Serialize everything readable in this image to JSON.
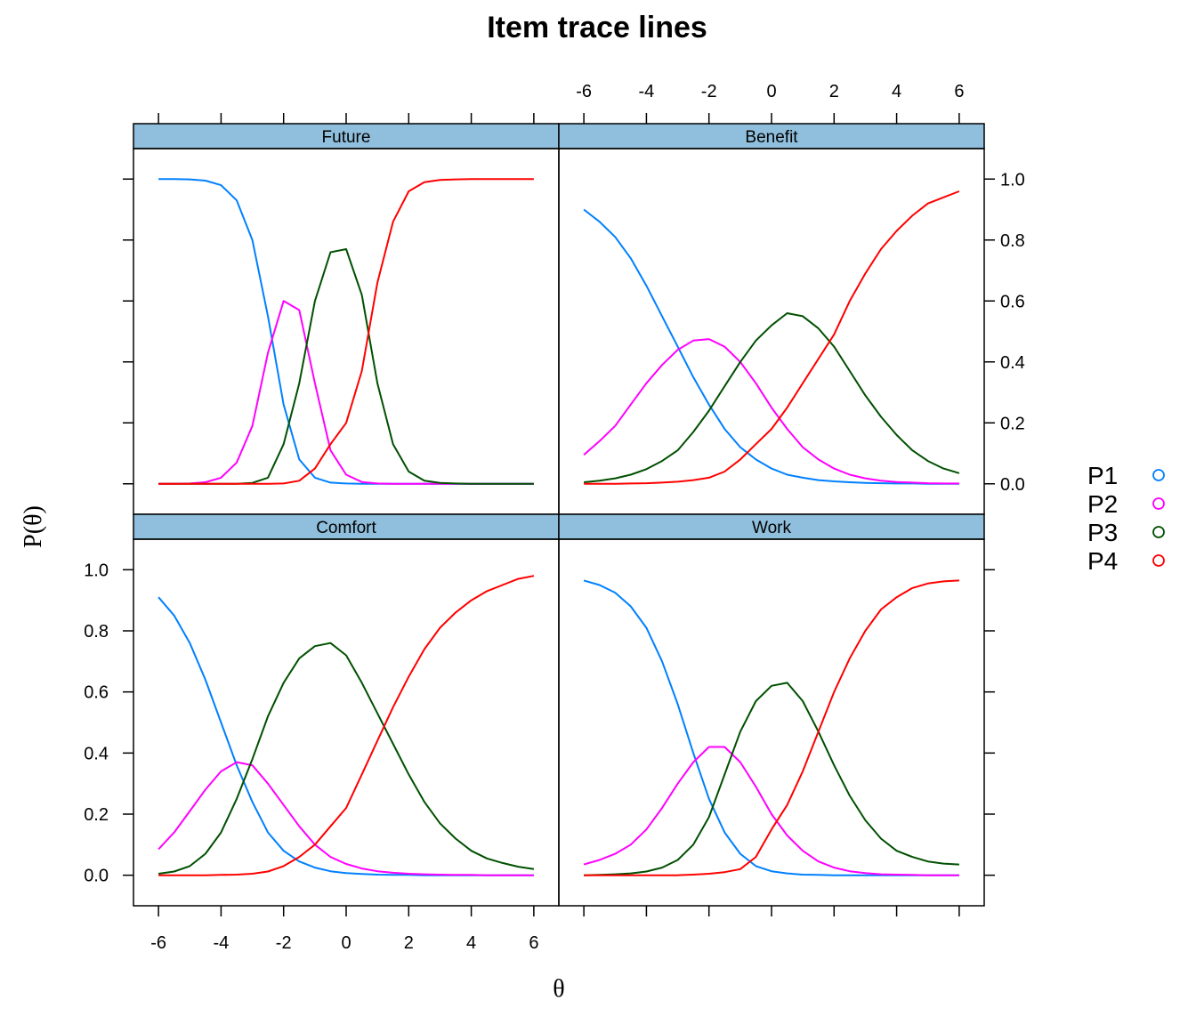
{
  "chart_data": {
    "type": "line",
    "title": "Item trace lines",
    "xlabel": "θ",
    "ylabel": "P(θ)",
    "xlim": [
      -6.8,
      6.8
    ],
    "ylim": [
      -0.1,
      1.1
    ],
    "x_ticks": [
      "-6",
      "-4",
      "-2",
      "0",
      "2",
      "4",
      "6"
    ],
    "y_ticks": [
      "0.0",
      "0.2",
      "0.4",
      "0.6",
      "0.8",
      "1.0"
    ],
    "legend_position": "right",
    "series_legend": [
      {
        "name": "P1",
        "color": "#0080ff"
      },
      {
        "name": "P2",
        "color": "#ff00ff"
      },
      {
        "name": "P3",
        "color": "#005000"
      },
      {
        "name": "P4",
        "color": "#ff0000"
      }
    ],
    "panels": [
      {
        "name": "Future",
        "x": [
          -6,
          -5.5,
          -5,
          -4.5,
          -4,
          -3.5,
          -3,
          -2.5,
          -2,
          -1.5,
          -1,
          -0.5,
          0,
          0.5,
          1,
          1.5,
          2,
          2.5,
          3,
          3.5,
          4,
          4.5,
          5,
          5.5,
          6
        ],
        "series": [
          {
            "name": "P1",
            "values": [
              1.0,
              1.0,
              0.999,
              0.995,
              0.98,
              0.93,
              0.8,
              0.55,
              0.26,
              0.08,
              0.02,
              0.004,
              0.001,
              0,
              0,
              0,
              0,
              0,
              0,
              0,
              0,
              0,
              0,
              0,
              0
            ]
          },
          {
            "name": "P2",
            "values": [
              0,
              0,
              0.001,
              0.005,
              0.02,
              0.07,
              0.19,
              0.43,
              0.6,
              0.57,
              0.33,
              0.11,
              0.03,
              0.006,
              0.001,
              0,
              0,
              0,
              0,
              0,
              0,
              0,
              0,
              0,
              0
            ]
          },
          {
            "name": "P3",
            "values": [
              0,
              0,
              0,
              0,
              0,
              0,
              0.003,
              0.02,
              0.13,
              0.33,
              0.6,
              0.76,
              0.77,
              0.62,
              0.33,
              0.13,
              0.04,
              0.01,
              0.003,
              0.001,
              0,
              0,
              0,
              0,
              0
            ]
          },
          {
            "name": "P4",
            "values": [
              0,
              0,
              0,
              0,
              0,
              0,
              0,
              0,
              0.001,
              0.01,
              0.05,
              0.13,
              0.2,
              0.37,
              0.66,
              0.86,
              0.96,
              0.99,
              0.997,
              0.999,
              1.0,
              1.0,
              1.0,
              1.0,
              1.0
            ]
          }
        ]
      },
      {
        "name": "Benefit",
        "x": [
          -6,
          -5.5,
          -5,
          -4.5,
          -4,
          -3.5,
          -3,
          -2.5,
          -2,
          -1.5,
          -1,
          -0.5,
          0,
          0.5,
          1,
          1.5,
          2,
          2.5,
          3,
          3.5,
          4,
          4.5,
          5,
          5.5,
          6
        ],
        "series": [
          {
            "name": "P1",
            "values": [
              0.9,
              0.86,
              0.81,
              0.74,
              0.65,
              0.55,
              0.45,
              0.35,
              0.26,
              0.18,
              0.12,
              0.08,
              0.05,
              0.03,
              0.02,
              0.012,
              0.008,
              0.005,
              0.003,
              0.002,
              0.001,
              0.001,
              0,
              0,
              0
            ]
          },
          {
            "name": "P2",
            "values": [
              0.095,
              0.14,
              0.19,
              0.26,
              0.33,
              0.39,
              0.44,
              0.47,
              0.475,
              0.45,
              0.4,
              0.33,
              0.25,
              0.18,
              0.12,
              0.08,
              0.05,
              0.03,
              0.018,
              0.01,
              0.006,
              0.004,
              0.002,
              0.001,
              0.001
            ]
          },
          {
            "name": "P3",
            "values": [
              0.005,
              0.01,
              0.018,
              0.03,
              0.048,
              0.075,
              0.11,
              0.17,
              0.24,
              0.32,
              0.4,
              0.47,
              0.52,
              0.56,
              0.55,
              0.51,
              0.45,
              0.37,
              0.29,
              0.22,
              0.16,
              0.11,
              0.075,
              0.05,
              0.035
            ]
          },
          {
            "name": "P4",
            "values": [
              0,
              0,
              0,
              0.001,
              0.002,
              0.004,
              0.007,
              0.012,
              0.02,
              0.04,
              0.08,
              0.13,
              0.18,
              0.25,
              0.33,
              0.41,
              0.49,
              0.6,
              0.69,
              0.77,
              0.83,
              0.88,
              0.92,
              0.94,
              0.96
            ]
          }
        ]
      },
      {
        "name": "Comfort",
        "x": [
          -6,
          -5.5,
          -5,
          -4.5,
          -4,
          -3.5,
          -3,
          -2.5,
          -2,
          -1.5,
          -1,
          -0.5,
          0,
          0.5,
          1,
          1.5,
          2,
          2.5,
          3,
          3.5,
          4,
          4.5,
          5,
          5.5,
          6
        ],
        "series": [
          {
            "name": "P1",
            "values": [
              0.91,
              0.85,
              0.76,
              0.64,
              0.5,
              0.36,
              0.24,
              0.14,
              0.08,
              0.045,
              0.025,
              0.013,
              0.007,
              0.004,
              0.002,
              0.001,
              0.001,
              0,
              0,
              0,
              0,
              0,
              0,
              0,
              0
            ]
          },
          {
            "name": "P2",
            "values": [
              0.085,
              0.14,
              0.21,
              0.28,
              0.34,
              0.37,
              0.36,
              0.3,
              0.23,
              0.16,
              0.1,
              0.06,
              0.037,
              0.022,
              0.013,
              0.008,
              0.005,
              0.003,
              0.002,
              0.001,
              0.001,
              0,
              0,
              0,
              0
            ]
          },
          {
            "name": "P3",
            "values": [
              0.005,
              0.012,
              0.03,
              0.07,
              0.14,
              0.25,
              0.38,
              0.52,
              0.63,
              0.71,
              0.75,
              0.76,
              0.72,
              0.63,
              0.53,
              0.43,
              0.33,
              0.24,
              0.17,
              0.12,
              0.08,
              0.055,
              0.04,
              0.028,
              0.02
            ]
          },
          {
            "name": "P4",
            "values": [
              0,
              0,
              0,
              0,
              0.001,
              0.002,
              0.005,
              0.012,
              0.03,
              0.06,
              0.1,
              0.16,
              0.22,
              0.33,
              0.44,
              0.55,
              0.65,
              0.74,
              0.81,
              0.86,
              0.9,
              0.93,
              0.95,
              0.97,
              0.98
            ]
          }
        ]
      },
      {
        "name": "Work",
        "x": [
          -6,
          -5.5,
          -5,
          -4.5,
          -4,
          -3.5,
          -3,
          -2.5,
          -2,
          -1.5,
          -1,
          -0.5,
          0,
          0.5,
          1,
          1.5,
          2,
          2.5,
          3,
          3.5,
          4,
          4.5,
          5,
          5.5,
          6
        ],
        "series": [
          {
            "name": "P1",
            "values": [
              0.965,
              0.95,
              0.925,
              0.88,
              0.81,
              0.7,
              0.56,
              0.4,
              0.25,
              0.14,
              0.07,
              0.03,
              0.013,
              0.006,
              0.002,
              0.001,
              0,
              0,
              0,
              0,
              0,
              0,
              0,
              0,
              0
            ]
          },
          {
            "name": "P2",
            "values": [
              0.035,
              0.05,
              0.07,
              0.1,
              0.15,
              0.22,
              0.3,
              0.37,
              0.42,
              0.42,
              0.37,
              0.29,
              0.2,
              0.13,
              0.08,
              0.045,
              0.025,
              0.013,
              0.007,
              0.003,
              0.002,
              0.001,
              0,
              0,
              0
            ]
          },
          {
            "name": "P3",
            "values": [
              0,
              0.001,
              0.003,
              0.006,
              0.012,
              0.025,
              0.05,
              0.1,
              0.19,
              0.33,
              0.47,
              0.57,
              0.62,
              0.63,
              0.57,
              0.47,
              0.36,
              0.26,
              0.18,
              0.12,
              0.08,
              0.06,
              0.045,
              0.038,
              0.035
            ]
          },
          {
            "name": "P4",
            "values": [
              0,
              0,
              0,
              0,
              0,
              0,
              0,
              0.002,
              0.005,
              0.01,
              0.02,
              0.06,
              0.15,
              0.23,
              0.34,
              0.47,
              0.6,
              0.71,
              0.8,
              0.87,
              0.91,
              0.94,
              0.955,
              0.962,
              0.965
            ]
          }
        ]
      }
    ]
  }
}
